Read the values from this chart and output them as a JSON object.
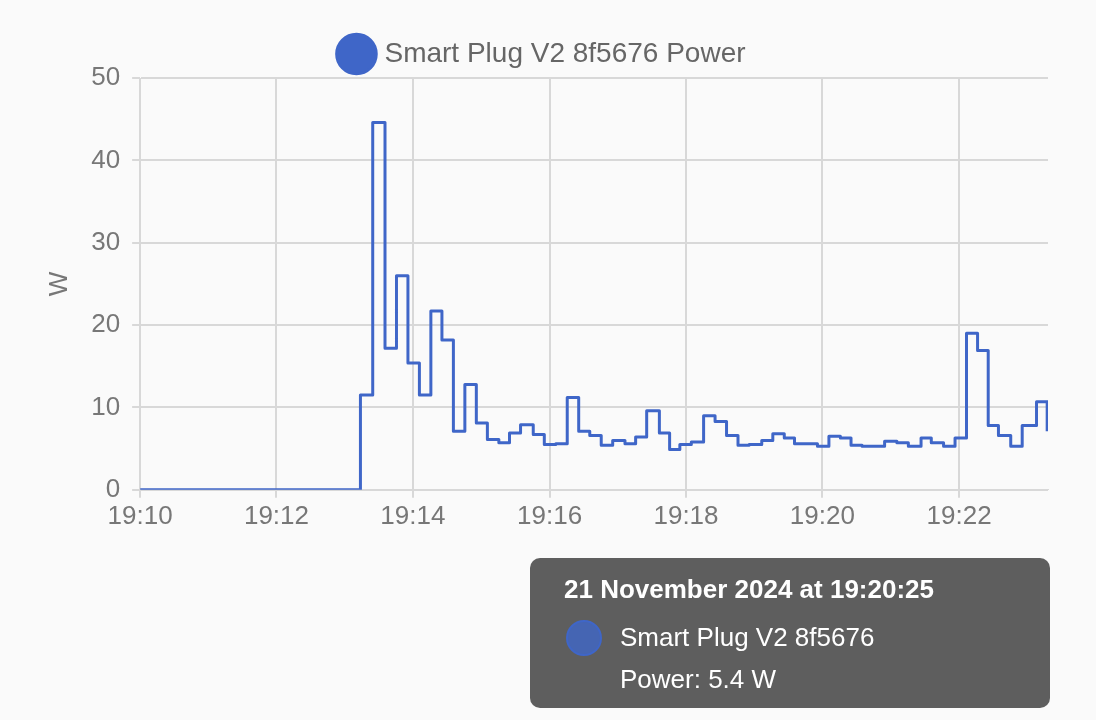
{
  "chart_data": {
    "type": "step",
    "ylabel": "W",
    "legend": "top",
    "grid": true,
    "marker": "none",
    "line_style": "solid",
    "xlim": [
      19.1667,
      19.3884
    ],
    "xticks": [
      {
        "value": 19.1667,
        "label": "19:10"
      },
      {
        "value": 19.2,
        "label": "19:12"
      },
      {
        "value": 19.2333,
        "label": "19:14"
      },
      {
        "value": 19.2667,
        "label": "19:16"
      },
      {
        "value": 19.3,
        "label": "19:18"
      },
      {
        "value": 19.3333,
        "label": "19:20"
      },
      {
        "value": 19.3667,
        "label": "19:22"
      }
    ],
    "ylim": [
      0,
      50
    ],
    "yticks": [
      0,
      10,
      20,
      30,
      40,
      50
    ],
    "x": [
      19.1667,
      19.2205,
      19.2235,
      19.2265,
      19.2293,
      19.2321,
      19.2349,
      19.2377,
      19.2404,
      19.2432,
      19.246,
      19.2488,
      19.2515,
      19.2543,
      19.2569,
      19.2596,
      19.2627,
      19.2654,
      19.2682,
      19.271,
      19.2738,
      19.2765,
      19.2793,
      19.2821,
      19.2851,
      19.2877,
      19.2904,
      19.2935,
      19.296,
      19.2985,
      19.3013,
      19.3043,
      19.3071,
      19.3099,
      19.3127,
      19.3154,
      19.3185,
      19.3212,
      19.324,
      19.3265,
      19.3293,
      19.3321,
      19.3349,
      19.3377,
      19.3403,
      19.343,
      19.346,
      19.3485,
      19.3515,
      19.3543,
      19.3574,
      19.3599,
      19.3629,
      19.3657,
      19.3685,
      19.3712,
      19.3738,
      19.3763,
      19.3793,
      19.3821,
      19.3856,
      19.3882
    ],
    "series": [
      {
        "name": "Smart Plug V2 8f5676 Power",
        "color": "#3f66c8",
        "values": [
          0,
          11.5,
          44.6,
          17.2,
          26.0,
          15.4,
          11.5,
          21.7,
          18.2,
          7.1,
          12.8,
          8.1,
          6.1,
          5.7,
          6.9,
          7.9,
          6.7,
          5.5,
          5.6,
          11.2,
          7.1,
          6.6,
          5.4,
          6.0,
          5.6,
          6.4,
          9.6,
          6.9,
          4.9,
          5.5,
          5.8,
          9.0,
          8.3,
          6.6,
          5.4,
          5.5,
          6.0,
          6.8,
          6.3,
          5.6,
          5.6,
          5.3,
          6.5,
          6.3,
          5.4,
          5.3,
          5.3,
          5.9,
          5.7,
          5.3,
          6.3,
          5.7,
          5.3,
          6.3,
          19.0,
          16.9,
          7.8,
          6.6,
          5.3,
          7.8,
          10.7,
          7.1
        ]
      }
    ],
    "annotations": [
      "21 November 2024 at 19:20:25\nSmart Plug V2 8f5676\nPower: 5.4 W"
    ]
  }
}
